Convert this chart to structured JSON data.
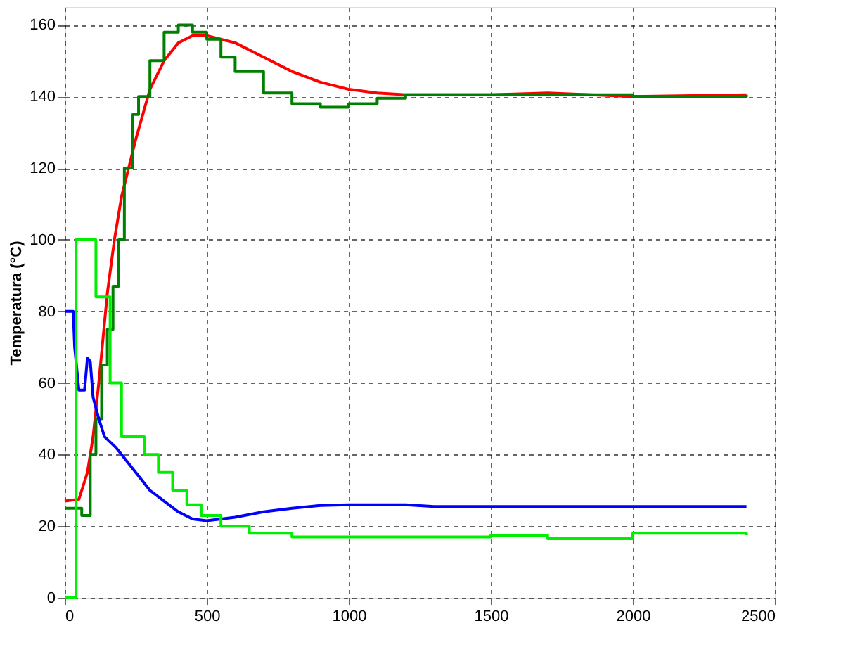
{
  "chart_data": {
    "type": "line",
    "ylabel": "Temperatura (°C)",
    "xlim": [
      0,
      2500
    ],
    "xticks": [
      0,
      500,
      1000,
      1500,
      2000,
      2500
    ],
    "ylim": [
      0,
      165
    ],
    "yticks": [
      0,
      20,
      40,
      60,
      80,
      100,
      120,
      140,
      160
    ],
    "grid": true,
    "line_style": "solid",
    "series": [
      {
        "color": "#ff0000",
        "x": [
          0,
          50,
          80,
          100,
          120,
          150,
          175,
          200,
          250,
          300,
          350,
          400,
          450,
          500,
          600,
          700,
          800,
          900,
          1000,
          1100,
          1200,
          1500,
          1700,
          2000,
          2400
        ],
        "values": [
          27,
          27.5,
          35,
          45,
          60,
          85,
          100,
          112,
          128,
          142,
          150,
          155,
          157,
          157,
          155,
          151,
          147,
          144,
          142,
          141,
          140.5,
          140.5,
          141,
          140,
          140.5
        ]
      },
      {
        "type": "step",
        "color": "#008000",
        "x": [
          0,
          50,
          60,
          80,
          90,
          110,
          130,
          150,
          170,
          190,
          210,
          240,
          260,
          300,
          350,
          400,
          450,
          500,
          550,
          600,
          700,
          800,
          900,
          1000,
          1100,
          1200,
          1500,
          2000,
          2400
        ],
        "values": [
          25,
          25,
          23,
          23,
          40,
          50,
          65,
          75,
          87,
          100,
          120,
          135,
          140,
          150,
          158,
          160,
          158,
          156,
          151,
          147,
          141,
          138,
          137,
          138,
          139.5,
          140.5,
          140.5,
          140,
          140.5
        ]
      },
      {
        "color": "#0000ff",
        "x": [
          0,
          30,
          35,
          50,
          70,
          80,
          90,
          100,
          120,
          140,
          180,
          200,
          250,
          300,
          350,
          400,
          450,
          500,
          600,
          700,
          800,
          900,
          1000,
          1200,
          1300,
          2400
        ],
        "values": [
          80,
          80,
          70,
          58,
          58,
          67,
          66,
          56,
          50,
          45,
          42,
          40,
          35,
          30,
          27,
          24,
          22,
          21.5,
          22.5,
          24,
          25,
          25.8,
          26,
          26,
          25.5,
          25.5
        ]
      },
      {
        "type": "step",
        "color": "#00ee00",
        "x": [
          0,
          30,
          40,
          100,
          110,
          150,
          160,
          190,
          200,
          280,
          330,
          380,
          430,
          480,
          550,
          650,
          800,
          1000,
          1500,
          1700,
          2000,
          2400
        ],
        "values": [
          0,
          0,
          100,
          100,
          84,
          84,
          60,
          60,
          45,
          40,
          35,
          30,
          26,
          23,
          20,
          18,
          17,
          17,
          17.5,
          16.5,
          18,
          17.5
        ]
      }
    ]
  }
}
